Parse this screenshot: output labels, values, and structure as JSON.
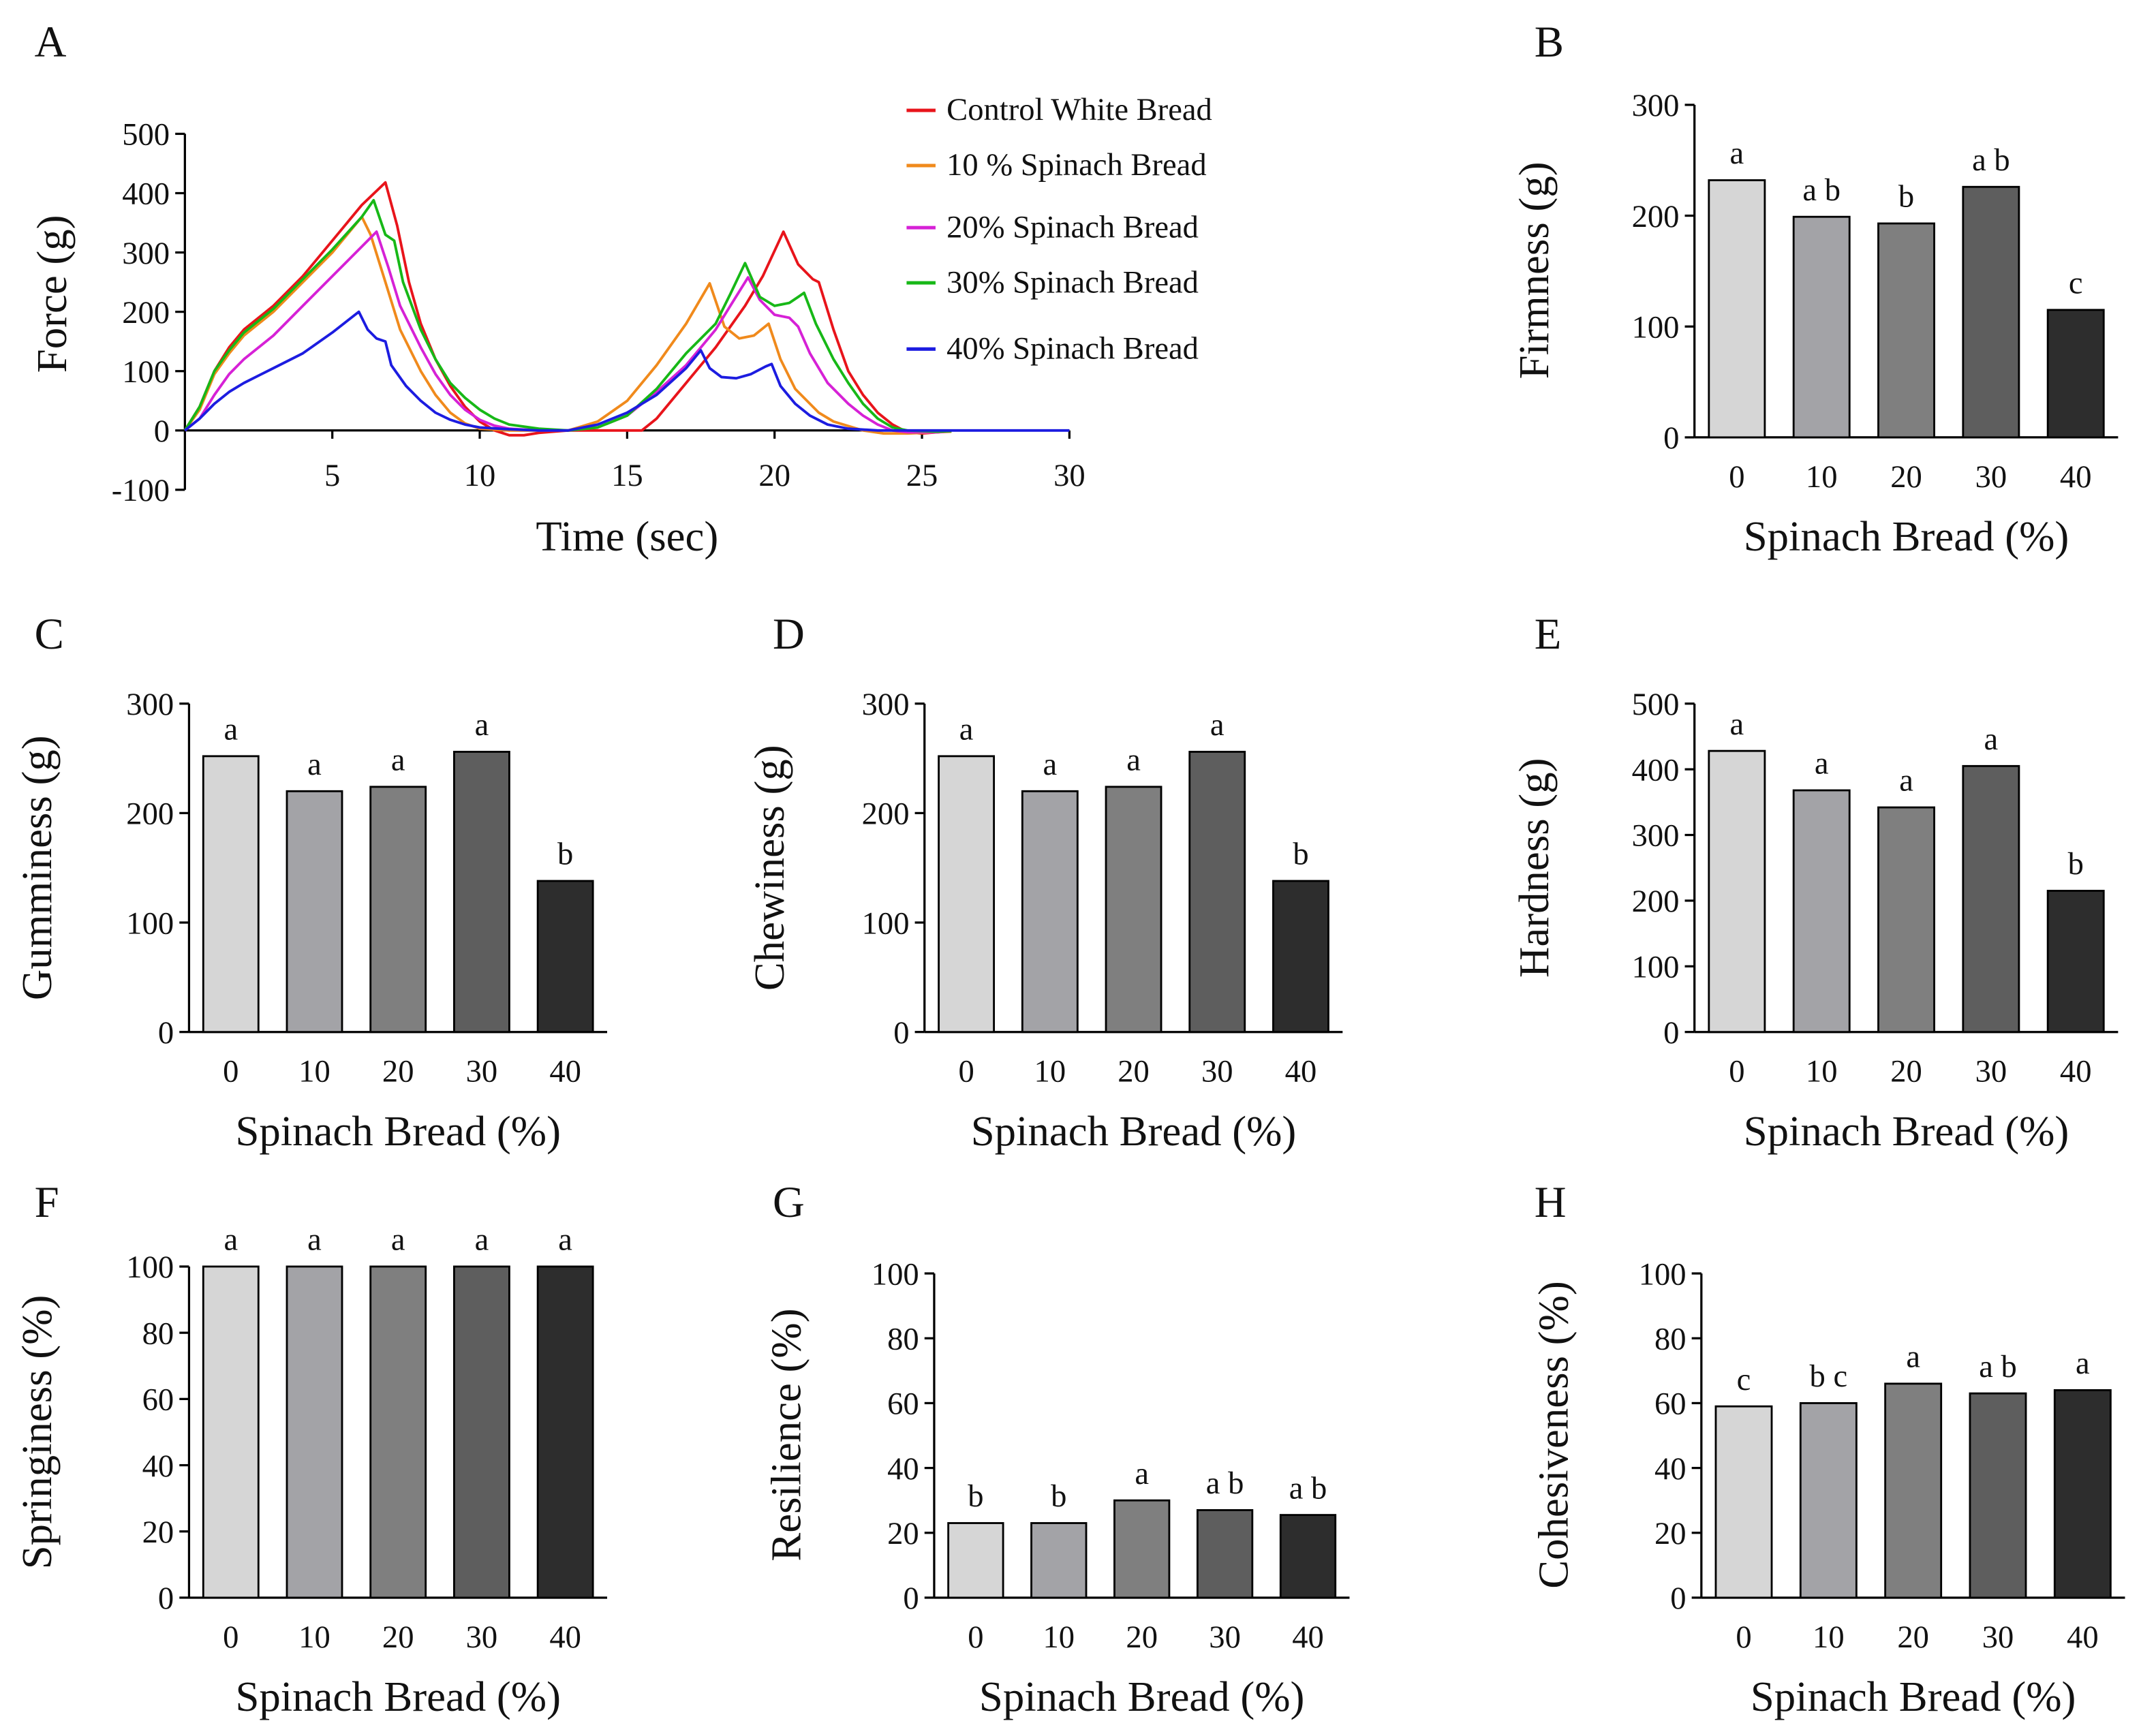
{
  "chart_data": [
    {
      "panel": "A",
      "type": "line",
      "xlabel": "Time (sec)",
      "ylabel": "Force (g)",
      "xlim": [
        0,
        30
      ],
      "ylim": [
        -100,
        500
      ],
      "xticks": [
        5,
        10,
        15,
        20,
        25,
        30
      ],
      "yticks": [
        -100,
        0,
        100,
        200,
        300,
        400,
        500
      ],
      "legend_position": "top-right",
      "series": [
        {
          "name": "Control White Bread",
          "color": "#e8141b",
          "points": [
            [
              0,
              0
            ],
            [
              0.5,
              40
            ],
            [
              1,
              100
            ],
            [
              1.5,
              140
            ],
            [
              2,
              170
            ],
            [
              3,
              210
            ],
            [
              4,
              260
            ],
            [
              5,
              320
            ],
            [
              6,
              380
            ],
            [
              6.8,
              418
            ],
            [
              7.2,
              345
            ],
            [
              7.6,
              250
            ],
            [
              8,
              180
            ],
            [
              8.5,
              120
            ],
            [
              9,
              75
            ],
            [
              9.5,
              40
            ],
            [
              10,
              15
            ],
            [
              10.5,
              0
            ],
            [
              11,
              -8
            ],
            [
              11.5,
              -8
            ],
            [
              12,
              -4
            ],
            [
              13,
              0
            ],
            [
              14,
              0
            ],
            [
              15.5,
              0
            ],
            [
              16,
              20
            ],
            [
              17,
              80
            ],
            [
              18,
              140
            ],
            [
              19,
              210
            ],
            [
              19.6,
              260
            ],
            [
              20.3,
              335
            ],
            [
              20.8,
              280
            ],
            [
              21.3,
              255
            ],
            [
              21.5,
              250
            ],
            [
              22,
              170
            ],
            [
              22.5,
              100
            ],
            [
              23,
              60
            ],
            [
              23.5,
              30
            ],
            [
              24,
              10
            ],
            [
              24.5,
              -3
            ],
            [
              25,
              -5
            ],
            [
              25.8,
              -2
            ]
          ]
        },
        {
          "name": "10 % Spinach Bread",
          "color": "#f08a1c",
          "points": [
            [
              0,
              0
            ],
            [
              0.5,
              35
            ],
            [
              1,
              95
            ],
            [
              1.5,
              130
            ],
            [
              2,
              160
            ],
            [
              3,
              200
            ],
            [
              4,
              250
            ],
            [
              5,
              300
            ],
            [
              6,
              360
            ],
            [
              6.3,
              330
            ],
            [
              6.8,
              250
            ],
            [
              7.3,
              170
            ],
            [
              8,
              100
            ],
            [
              8.5,
              60
            ],
            [
              9,
              30
            ],
            [
              9.5,
              12
            ],
            [
              10,
              3
            ],
            [
              11,
              0
            ],
            [
              12,
              0
            ],
            [
              13,
              0
            ],
            [
              14,
              15
            ],
            [
              15,
              50
            ],
            [
              16,
              110
            ],
            [
              17,
              180
            ],
            [
              17.8,
              248
            ],
            [
              18.3,
              175
            ],
            [
              18.8,
              155
            ],
            [
              19.3,
              160
            ],
            [
              19.8,
              180
            ],
            [
              20.2,
              120
            ],
            [
              20.7,
              70
            ],
            [
              21.5,
              30
            ],
            [
              22,
              15
            ],
            [
              23,
              0
            ],
            [
              23.7,
              -5
            ],
            [
              24.5,
              -5
            ],
            [
              25.5,
              -3
            ],
            [
              26,
              -2
            ]
          ]
        },
        {
          "name": "20% Spinach Bread",
          "color": "#d621d6",
          "points": [
            [
              0,
              0
            ],
            [
              0.5,
              20
            ],
            [
              1,
              60
            ],
            [
              1.5,
              95
            ],
            [
              2,
              120
            ],
            [
              3,
              160
            ],
            [
              4,
              210
            ],
            [
              5,
              260
            ],
            [
              6,
              310
            ],
            [
              6.5,
              335
            ],
            [
              6.9,
              275
            ],
            [
              7.3,
              210
            ],
            [
              8,
              140
            ],
            [
              8.5,
              95
            ],
            [
              9,
              60
            ],
            [
              9.5,
              35
            ],
            [
              10,
              18
            ],
            [
              10.5,
              8
            ],
            [
              11,
              3
            ],
            [
              12,
              0
            ],
            [
              13,
              0
            ],
            [
              14,
              5
            ],
            [
              15,
              25
            ],
            [
              16,
              65
            ],
            [
              17,
              110
            ],
            [
              18,
              170
            ],
            [
              18.5,
              210
            ],
            [
              19.1,
              258
            ],
            [
              19.5,
              220
            ],
            [
              20,
              195
            ],
            [
              20.5,
              190
            ],
            [
              20.8,
              175
            ],
            [
              21.2,
              130
            ],
            [
              21.8,
              80
            ],
            [
              22.5,
              45
            ],
            [
              23,
              25
            ],
            [
              23.5,
              10
            ],
            [
              24,
              0
            ],
            [
              24.5,
              -3
            ],
            [
              25.5,
              -3
            ],
            [
              26,
              -1
            ]
          ]
        },
        {
          "name": "30% Spinach Bread",
          "color": "#17b817",
          "points": [
            [
              0,
              0
            ],
            [
              0.5,
              40
            ],
            [
              1,
              100
            ],
            [
              1.5,
              135
            ],
            [
              2,
              165
            ],
            [
              3,
              205
            ],
            [
              4,
              255
            ],
            [
              5,
              305
            ],
            [
              6,
              360
            ],
            [
              6.4,
              388
            ],
            [
              6.8,
              330
            ],
            [
              7.1,
              320
            ],
            [
              7.4,
              250
            ],
            [
              8,
              170
            ],
            [
              8.5,
              120
            ],
            [
              9,
              80
            ],
            [
              9.5,
              55
            ],
            [
              10,
              35
            ],
            [
              10.5,
              20
            ],
            [
              11,
              10
            ],
            [
              12,
              3
            ],
            [
              13,
              0
            ],
            [
              14,
              5
            ],
            [
              15,
              25
            ],
            [
              16,
              70
            ],
            [
              17,
              130
            ],
            [
              18,
              180
            ],
            [
              18.5,
              230
            ],
            [
              19,
              282
            ],
            [
              19.5,
              225
            ],
            [
              20,
              210
            ],
            [
              20.5,
              215
            ],
            [
              20.8,
              225
            ],
            [
              21,
              232
            ],
            [
              21.4,
              180
            ],
            [
              22,
              120
            ],
            [
              22.5,
              80
            ],
            [
              23,
              45
            ],
            [
              23.5,
              20
            ],
            [
              24,
              5
            ],
            [
              24.5,
              0
            ],
            [
              25.5,
              -2
            ],
            [
              26,
              -1
            ]
          ]
        },
        {
          "name": "40% Spinach Bread",
          "color": "#1c1ce0",
          "points": [
            [
              0,
              0
            ],
            [
              0.5,
              20
            ],
            [
              1,
              45
            ],
            [
              1.5,
              65
            ],
            [
              2,
              80
            ],
            [
              3,
              105
            ],
            [
              4,
              130
            ],
            [
              5,
              165
            ],
            [
              5.9,
              200
            ],
            [
              6.2,
              170
            ],
            [
              6.5,
              155
            ],
            [
              6.8,
              150
            ],
            [
              7,
              110
            ],
            [
              7.5,
              75
            ],
            [
              8,
              50
            ],
            [
              8.5,
              30
            ],
            [
              9,
              18
            ],
            [
              9.5,
              10
            ],
            [
              10,
              5
            ],
            [
              11,
              2
            ],
            [
              12,
              0
            ],
            [
              13,
              0
            ],
            [
              14,
              10
            ],
            [
              15,
              30
            ],
            [
              16,
              60
            ],
            [
              17,
              105
            ],
            [
              17.5,
              135
            ],
            [
              17.8,
              105
            ],
            [
              18.2,
              90
            ],
            [
              18.7,
              88
            ],
            [
              19.2,
              95
            ],
            [
              19.7,
              108
            ],
            [
              19.9,
              112
            ],
            [
              20.2,
              75
            ],
            [
              20.7,
              45
            ],
            [
              21.2,
              25
            ],
            [
              21.8,
              10
            ],
            [
              22.5,
              3
            ],
            [
              23.5,
              0
            ],
            [
              26,
              0
            ],
            [
              30,
              0
            ]
          ]
        }
      ]
    },
    {
      "panel": "B",
      "type": "bar",
      "xlabel": "Spinach Bread (%)",
      "ylabel": "Firmness (g)",
      "categories": [
        "0",
        "10",
        "20",
        "30",
        "40"
      ],
      "values": [
        232,
        199,
        193,
        226,
        115
      ],
      "letters": [
        "a",
        "a b",
        "b",
        "a b",
        "c"
      ],
      "ylim": [
        0,
        300
      ],
      "yticks": [
        0,
        100,
        200,
        300
      ]
    },
    {
      "panel": "C",
      "type": "bar",
      "xlabel": "Spinach Bread (%)",
      "ylabel": "Gumminess (g)",
      "categories": [
        "0",
        "10",
        "20",
        "30",
        "40"
      ],
      "values": [
        252,
        220,
        224,
        256,
        138
      ],
      "letters": [
        "a",
        "a",
        "a",
        "a",
        "b"
      ],
      "ylim": [
        0,
        300
      ],
      "yticks": [
        0,
        100,
        200,
        300
      ]
    },
    {
      "panel": "D",
      "type": "bar",
      "xlabel": "Spinach Bread (%)",
      "ylabel": "Chewiness (g)",
      "categories": [
        "0",
        "10",
        "20",
        "30",
        "40"
      ],
      "values": [
        252,
        220,
        224,
        256,
        138
      ],
      "letters": [
        "a",
        "a",
        "a",
        "a",
        "b"
      ],
      "ylim": [
        0,
        300
      ],
      "yticks": [
        0,
        100,
        200,
        300
      ]
    },
    {
      "panel": "E",
      "type": "bar",
      "xlabel": "Spinach Bread (%)",
      "ylabel": "Hardness (g)",
      "categories": [
        "0",
        "10",
        "20",
        "30",
        "40"
      ],
      "values": [
        428,
        368,
        342,
        405,
        215
      ],
      "letters": [
        "a",
        "a",
        "a",
        "a",
        "b"
      ],
      "ylim": [
        0,
        500
      ],
      "yticks": [
        0,
        100,
        200,
        300,
        400,
        500
      ]
    },
    {
      "panel": "F",
      "type": "bar",
      "xlabel": "Spinach Bread (%)",
      "ylabel": "Springiness (%)",
      "categories": [
        "0",
        "10",
        "20",
        "30",
        "40"
      ],
      "values": [
        100,
        100,
        100,
        100,
        100
      ],
      "letters": [
        "a",
        "a",
        "a",
        "a",
        "a"
      ],
      "ylim": [
        0,
        100
      ],
      "yticks": [
        0,
        20,
        40,
        60,
        80,
        100
      ]
    },
    {
      "panel": "G",
      "type": "bar",
      "xlabel": "Spinach Bread (%)",
      "ylabel": "Resilience (%)",
      "categories": [
        "0",
        "10",
        "20",
        "30",
        "40"
      ],
      "values": [
        23,
        23,
        30,
        27,
        25.5
      ],
      "letters": [
        "b",
        "b",
        "a",
        "a b",
        "a b"
      ],
      "ylim": [
        0,
        100
      ],
      "yticks": [
        0,
        20,
        40,
        60,
        80,
        100
      ]
    },
    {
      "panel": "H",
      "type": "bar",
      "xlabel": "Spinach Bread (%)",
      "ylabel": "Cohesiveness (%)",
      "categories": [
        "0",
        "10",
        "20",
        "30",
        "40"
      ],
      "values": [
        59,
        60,
        66,
        63,
        64
      ],
      "letters": [
        "c",
        "b c",
        "a",
        "a b",
        "a"
      ],
      "ylim": [
        0,
        100
      ],
      "yticks": [
        0,
        20,
        40,
        60,
        80,
        100
      ]
    }
  ],
  "bar_colors": [
    "#d6d6d6",
    "#a3a3a7",
    "#7f7f7f",
    "#5e5e5e",
    "#2d2d2d"
  ]
}
